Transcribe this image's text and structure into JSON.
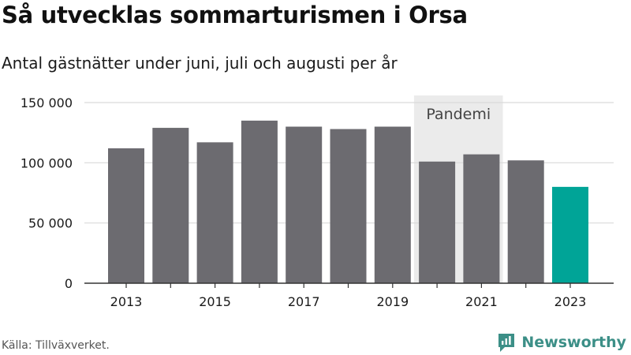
{
  "title": "Så utvecklas sommarturismen i Orsa",
  "subtitle": "Antal gästnätter under juni, juli och augusti per år",
  "source": "Källa: Tillväxverket.",
  "brand": {
    "name": "Newsworthy",
    "icon": "newsworthy-logo-icon"
  },
  "colors": {
    "bar": "#6c6b70",
    "highlight": "#00a497",
    "band": "#ebebeb",
    "grid": "#d9d9d9",
    "axis": "#333333"
  },
  "chart_data": {
    "type": "bar",
    "title": "Så utvecklas sommarturismen i Orsa",
    "subtitle": "Antal gästnätter under juni, juli och augusti per år",
    "xlabel": "",
    "ylabel": "",
    "categories": [
      "2013",
      "2014",
      "2015",
      "2016",
      "2017",
      "2018",
      "2019",
      "2020",
      "2021",
      "2022",
      "2023"
    ],
    "values": [
      112000,
      129000,
      117000,
      135000,
      130000,
      128000,
      130000,
      101000,
      107000,
      102000,
      80000
    ],
    "highlight_category": "2023",
    "x_tick_labels": [
      "2013",
      "",
      "2015",
      "",
      "2017",
      "",
      "2019",
      "",
      "2021",
      "",
      "2023"
    ],
    "ylim": [
      0,
      150000
    ],
    "y_ticks": [
      0,
      50000,
      100000,
      150000
    ],
    "y_tick_labels": [
      "0",
      "50 000",
      "100 000",
      "150 000"
    ],
    "grid": true,
    "legend": "none",
    "annotations": [
      {
        "label": "Pandemi",
        "from": "2020",
        "to": "2021"
      }
    ]
  }
}
